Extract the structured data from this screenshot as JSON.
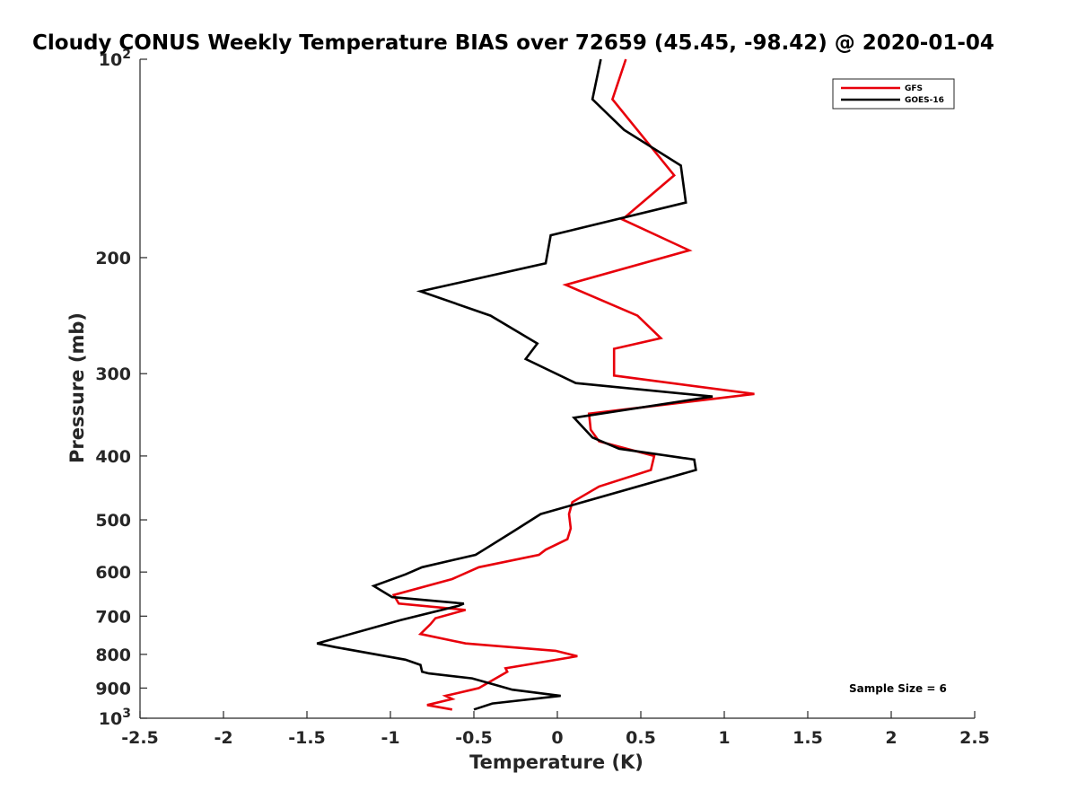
{
  "chart_data": {
    "type": "line",
    "title": "Cloudy CONUS Weekly Temperature BIAS over 72659 (45.45, -98.42) @ 2020-01-04",
    "xlabel": "Temperature (K)",
    "ylabel": "Pressure (mb)",
    "xlim": [
      -2.5,
      2.5
    ],
    "ylim": [
      1000,
      100
    ],
    "y_scale": "log",
    "y_reversed": true,
    "x_ticks": [
      -2.5,
      -2,
      -1.5,
      -1,
      -0.5,
      0,
      0.5,
      1,
      1.5,
      2,
      2.5
    ],
    "x_tick_labels": [
      "-2.5",
      "-2",
      "-1.5",
      "-1",
      "-0.5",
      "0",
      "0.5",
      "1",
      "1.5",
      "2",
      "2.5"
    ],
    "y_ticks": [
      100,
      200,
      300,
      400,
      500,
      600,
      700,
      800,
      900,
      1000
    ],
    "y_tick_labels": [
      {
        "base": "10",
        "exp": "2"
      },
      {
        "base": "200",
        "exp": ""
      },
      {
        "base": "300",
        "exp": ""
      },
      {
        "base": "400",
        "exp": ""
      },
      {
        "base": "500",
        "exp": ""
      },
      {
        "base": "600",
        "exp": ""
      },
      {
        "base": "700",
        "exp": ""
      },
      {
        "base": "800",
        "exp": ""
      },
      {
        "base": "900",
        "exp": ""
      },
      {
        "base": "10",
        "exp": "3"
      }
    ],
    "grid": false,
    "legend_position": "top-right",
    "annotation": "Sample Size = 6",
    "series": [
      {
        "name": "GFS",
        "color": "#e8000b",
        "points": [
          [
            0.41,
            100
          ],
          [
            0.33,
            115
          ],
          [
            0.7,
            150
          ],
          [
            0.39,
            175
          ],
          [
            0.79,
            195
          ],
          [
            0.05,
            220
          ],
          [
            0.48,
            245
          ],
          [
            0.62,
            265
          ],
          [
            0.34,
            275
          ],
          [
            0.34,
            302
          ],
          [
            1.18,
            322
          ],
          [
            0.19,
            345
          ],
          [
            0.2,
            365
          ],
          [
            0.25,
            380
          ],
          [
            0.58,
            400
          ],
          [
            0.56,
            420
          ],
          [
            0.25,
            445
          ],
          [
            0.09,
            470
          ],
          [
            0.07,
            490
          ],
          [
            0.08,
            515
          ],
          [
            0.06,
            535
          ],
          [
            -0.07,
            555
          ],
          [
            -0.11,
            565
          ],
          [
            -0.47,
            590
          ],
          [
            -0.63,
            615
          ],
          [
            -0.98,
            650
          ],
          [
            -0.95,
            670
          ],
          [
            -0.55,
            685
          ],
          [
            -0.73,
            705
          ],
          [
            -0.76,
            720
          ],
          [
            -0.82,
            745
          ],
          [
            -0.55,
            770
          ],
          [
            -0.01,
            790
          ],
          [
            0.12,
            805
          ],
          [
            -0.31,
            840
          ],
          [
            -0.3,
            850
          ],
          [
            -0.47,
            900
          ],
          [
            -0.51,
            905
          ],
          [
            -0.67,
            925
          ],
          [
            -0.63,
            935
          ],
          [
            -0.78,
            955
          ],
          [
            -0.63,
            970
          ]
        ]
      },
      {
        "name": "GOES-16",
        "color": "#000000",
        "points": [
          [
            0.26,
            100
          ],
          [
            0.21,
            115
          ],
          [
            0.4,
            128
          ],
          [
            0.74,
            145
          ],
          [
            0.77,
            165
          ],
          [
            -0.04,
            185
          ],
          [
            -0.07,
            204
          ],
          [
            -0.82,
            225
          ],
          [
            -0.4,
            245
          ],
          [
            -0.12,
            270
          ],
          [
            -0.19,
            285
          ],
          [
            0.11,
            310
          ],
          [
            0.93,
            325
          ],
          [
            0.1,
            350
          ],
          [
            0.21,
            375
          ],
          [
            0.37,
            390
          ],
          [
            0.82,
            405
          ],
          [
            0.83,
            420
          ],
          [
            -0.1,
            490
          ],
          [
            -0.26,
            520
          ],
          [
            -0.44,
            555
          ],
          [
            -0.49,
            565
          ],
          [
            -0.81,
            590
          ],
          [
            -0.91,
            605
          ],
          [
            -1.1,
            630
          ],
          [
            -0.99,
            655
          ],
          [
            -0.56,
            670
          ],
          [
            -0.59,
            675
          ],
          [
            -0.94,
            710
          ],
          [
            -1.44,
            770
          ],
          [
            -1.33,
            780
          ],
          [
            -0.91,
            815
          ],
          [
            -0.82,
            830
          ],
          [
            -0.81,
            850
          ],
          [
            -0.77,
            855
          ],
          [
            -0.51,
            870
          ],
          [
            -0.27,
            905
          ],
          [
            0.02,
            925
          ],
          [
            -0.39,
            950
          ],
          [
            -0.5,
            970
          ]
        ]
      }
    ]
  }
}
